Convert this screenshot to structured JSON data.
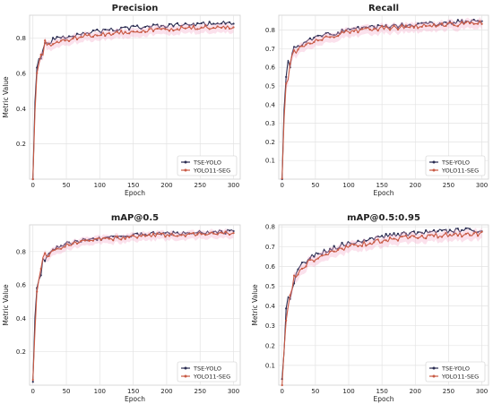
{
  "chart_data": [
    {
      "type": "line",
      "title": "Precision",
      "xlabel": "Epoch",
      "ylabel": "Metric Value",
      "xlim": [
        -5,
        310
      ],
      "ylim": [
        0.0,
        0.93
      ],
      "xticks": [
        0,
        50,
        100,
        150,
        200,
        250,
        300
      ],
      "yticks": [
        0.2,
        0.4,
        0.6,
        0.8
      ],
      "tick_labels_y": [
        "0.2",
        "0.4",
        "0.6",
        "0.8"
      ],
      "tick_labels_x": [
        "0",
        "50",
        "100",
        "150",
        "200",
        "250",
        "300"
      ],
      "grid": true,
      "legend_position": "bottom-right",
      "series": [
        {
          "name": "TSE-YOLO",
          "color": "#2b2d52",
          "x": [
            0,
            2,
            5,
            10,
            15,
            20,
            30,
            40,
            50,
            75,
            100,
            150,
            200,
            250,
            300
          ],
          "values": [
            0.02,
            0.35,
            0.6,
            0.7,
            0.74,
            0.77,
            0.79,
            0.8,
            0.81,
            0.83,
            0.84,
            0.86,
            0.87,
            0.88,
            0.89
          ]
        },
        {
          "name": "YOLO11-SEG",
          "color": "#c85a44",
          "x": [
            0,
            2,
            5,
            10,
            15,
            20,
            30,
            40,
            50,
            75,
            100,
            150,
            200,
            250,
            300
          ],
          "values": [
            0.02,
            0.3,
            0.55,
            0.68,
            0.72,
            0.75,
            0.77,
            0.78,
            0.79,
            0.81,
            0.82,
            0.84,
            0.85,
            0.86,
            0.86
          ]
        }
      ]
    },
    {
      "type": "line",
      "title": "Recall",
      "xlabel": "Epoch",
      "ylabel": "",
      "xlim": [
        -5,
        310
      ],
      "ylim": [
        0.0,
        0.88
      ],
      "xticks": [
        0,
        50,
        100,
        150,
        200,
        250,
        300
      ],
      "yticks": [
        0.1,
        0.2,
        0.3,
        0.4,
        0.5,
        0.6,
        0.7,
        0.8
      ],
      "tick_labels_y": [
        "0.1",
        "0.2",
        "0.3",
        "0.4",
        "0.5",
        "0.6",
        "0.7",
        "0.8"
      ],
      "tick_labels_x": [
        "0",
        "50",
        "100",
        "150",
        "200",
        "250",
        "300"
      ],
      "grid": true,
      "legend_position": "bottom-right",
      "series": [
        {
          "name": "TSE-YOLO",
          "color": "#2b2d52",
          "x": [
            0,
            2,
            5,
            10,
            15,
            20,
            30,
            40,
            50,
            75,
            100,
            150,
            200,
            250,
            300
          ],
          "values": [
            0.02,
            0.3,
            0.5,
            0.62,
            0.67,
            0.7,
            0.73,
            0.75,
            0.76,
            0.78,
            0.8,
            0.82,
            0.83,
            0.84,
            0.85
          ]
        },
        {
          "name": "YOLO11-SEG",
          "color": "#c85a44",
          "x": [
            0,
            2,
            5,
            10,
            15,
            20,
            30,
            40,
            50,
            75,
            100,
            150,
            200,
            250,
            300
          ],
          "values": [
            0.02,
            0.28,
            0.48,
            0.6,
            0.65,
            0.68,
            0.71,
            0.73,
            0.74,
            0.77,
            0.79,
            0.81,
            0.82,
            0.83,
            0.84
          ]
        }
      ]
    },
    {
      "type": "line",
      "title": "mAP@0.5",
      "xlabel": "Epoch",
      "ylabel": "Metric Value",
      "xlim": [
        -5,
        310
      ],
      "ylim": [
        0.0,
        0.96
      ],
      "xticks": [
        0,
        50,
        100,
        150,
        200,
        250,
        300
      ],
      "yticks": [
        0.2,
        0.4,
        0.6,
        0.8
      ],
      "tick_labels_y": [
        "0.2",
        "0.4",
        "0.6",
        "0.8"
      ],
      "tick_labels_x": [
        "0",
        "50",
        "100",
        "150",
        "200",
        "250",
        "300"
      ],
      "grid": true,
      "legend_position": "bottom-right",
      "series": [
        {
          "name": "TSE-YOLO",
          "color": "#2b2d52",
          "x": [
            0,
            2,
            5,
            10,
            15,
            20,
            30,
            40,
            50,
            75,
            100,
            150,
            200,
            250,
            300
          ],
          "values": [
            0.02,
            0.3,
            0.55,
            0.68,
            0.74,
            0.77,
            0.81,
            0.83,
            0.85,
            0.87,
            0.88,
            0.9,
            0.91,
            0.915,
            0.92
          ]
        },
        {
          "name": "YOLO11-SEG",
          "color": "#c85a44",
          "x": [
            0,
            2,
            5,
            10,
            15,
            20,
            30,
            40,
            50,
            75,
            100,
            150,
            200,
            250,
            300
          ],
          "values": [
            0.02,
            0.28,
            0.52,
            0.66,
            0.72,
            0.76,
            0.8,
            0.82,
            0.84,
            0.86,
            0.87,
            0.89,
            0.9,
            0.905,
            0.91
          ]
        }
      ]
    },
    {
      "type": "line",
      "title": "mAP@0.5:0.95",
      "xlabel": "Epoch",
      "ylabel": "Metric Value",
      "xlim": [
        -5,
        310
      ],
      "ylim": [
        0.0,
        0.81
      ],
      "xticks": [
        0,
        50,
        100,
        150,
        200,
        250,
        300
      ],
      "yticks": [
        0.1,
        0.2,
        0.3,
        0.4,
        0.5,
        0.6,
        0.7,
        0.8
      ],
      "tick_labels_y": [
        "0.1",
        "0.2",
        "0.3",
        "0.4",
        "0.5",
        "0.6",
        "0.7",
        "0.8"
      ],
      "tick_labels_x": [
        "0",
        "50",
        "100",
        "150",
        "200",
        "250",
        "300"
      ],
      "grid": true,
      "legend_position": "bottom-right",
      "series": [
        {
          "name": "TSE-YOLO",
          "color": "#2b2d52",
          "x": [
            0,
            2,
            5,
            10,
            15,
            20,
            30,
            40,
            50,
            75,
            100,
            150,
            200,
            250,
            300
          ],
          "values": [
            0.01,
            0.15,
            0.32,
            0.45,
            0.52,
            0.56,
            0.61,
            0.64,
            0.66,
            0.69,
            0.72,
            0.75,
            0.77,
            0.78,
            0.785
          ]
        },
        {
          "name": "YOLO11-SEG",
          "color": "#c85a44",
          "x": [
            0,
            2,
            5,
            10,
            15,
            20,
            30,
            40,
            50,
            75,
            100,
            150,
            200,
            250,
            300
          ],
          "values": [
            0.01,
            0.13,
            0.3,
            0.43,
            0.5,
            0.54,
            0.59,
            0.62,
            0.64,
            0.67,
            0.7,
            0.73,
            0.75,
            0.76,
            0.765
          ]
        }
      ]
    }
  ]
}
